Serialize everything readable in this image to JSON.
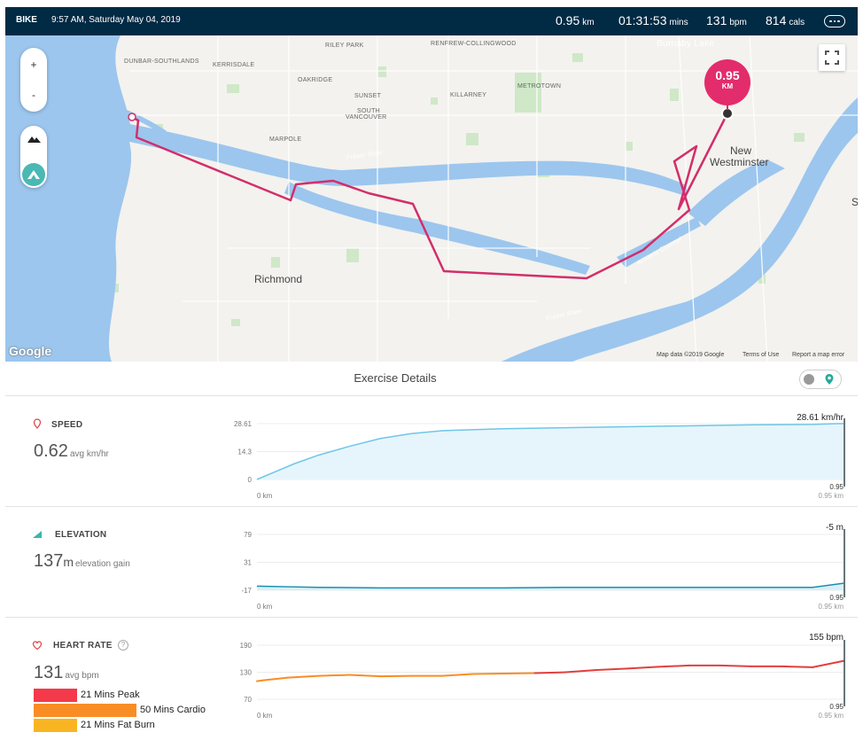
{
  "header": {
    "activity": "BIKE",
    "datetime": "9:57 AM, Saturday May 04, 2019",
    "distance_value": "0.95",
    "distance_unit": "km",
    "duration_value": "01:31:53",
    "duration_unit": "mins",
    "bpm_value": "131",
    "bpm_unit": "bpm",
    "cals_value": "814",
    "cals_unit": "cals"
  },
  "map": {
    "labels": [
      "DUNBAR-SOUTHLANDS",
      "KERRISDALE",
      "RILEY PARK",
      "OAKRIDGE",
      "RENFREW-COLLINGWOOD",
      "SUNSET",
      "SOUTH",
      "VANCOUVER",
      "KILLARNEY",
      "METROTOWN",
      "MARPOLE",
      "Fraser River",
      "Fraser River",
      "Annacis Channel",
      "Burnaby Lake"
    ],
    "cities": [
      "Richmond",
      "New",
      "Westminster",
      "S"
    ],
    "zoom_in": "+",
    "zoom_out": "-",
    "pin_value": "0.95",
    "pin_unit": "KM",
    "google": "Google",
    "footer_data": "Map data ©2019 Google",
    "footer_terms": "Terms of Use",
    "footer_report": "Report a map error"
  },
  "details": {
    "title": "Exercise Details"
  },
  "speed": {
    "label": "SPEED",
    "value": "0.62",
    "unit": "avg km/hr",
    "y_max": "28.61",
    "y_mid": "14.3",
    "y_min": "0",
    "x_start": "0 km",
    "x_end_top": "0.95",
    "x_end": "0.95 km",
    "readout": "28.61 km/hr"
  },
  "elevation": {
    "label": "ELEVATION",
    "value": "137",
    "value_unit": "m",
    "unit": "elevation gain",
    "y_max": "79",
    "y_mid": "31",
    "y_min": "-17",
    "x_start": "0 km",
    "x_end_top": "0.95",
    "x_end": "0.95 km",
    "readout": "-5 m"
  },
  "heart": {
    "label": "HEART RATE",
    "help": "?",
    "value": "131",
    "unit": "avg bpm",
    "y_max": "190",
    "y_mid": "130",
    "y_min": "70",
    "x_start": "0 km",
    "x_end_top": "0.95",
    "x_end": "0.95 km",
    "readout": "155 bpm",
    "zones": [
      {
        "label": "21 Mins Peak",
        "color": "#f4394a",
        "minutes": 21
      },
      {
        "label": "50 Mins Cardio",
        "color": "#f98d25",
        "minutes": 50
      },
      {
        "label": "21 Mins Fat Burn",
        "color": "#f9b521",
        "minutes": 21
      }
    ]
  },
  "chart_data": [
    {
      "type": "area",
      "title": "SPEED",
      "xlabel": "km",
      "ylabel": "km/hr",
      "xlim": [
        0,
        0.95
      ],
      "ylim": [
        0,
        28.61
      ],
      "x": [
        0,
        0.03,
        0.06,
        0.1,
        0.15,
        0.2,
        0.25,
        0.3,
        0.4,
        0.5,
        0.6,
        0.7,
        0.8,
        0.9,
        0.94,
        0.95
      ],
      "values": [
        0,
        4,
        8,
        12.5,
        17,
        21,
        23.5,
        25,
        26,
        26.5,
        27,
        27.5,
        28,
        28.2,
        28.61,
        28.61
      ]
    },
    {
      "type": "area",
      "title": "ELEVATION",
      "xlabel": "km",
      "ylabel": "m",
      "xlim": [
        0,
        0.95
      ],
      "ylim": [
        -17,
        79
      ],
      "x": [
        0,
        0.05,
        0.1,
        0.2,
        0.3,
        0.4,
        0.5,
        0.6,
        0.7,
        0.8,
        0.9,
        0.95
      ],
      "values": [
        -10,
        -11,
        -12,
        -13,
        -13,
        -13,
        -12,
        -12,
        -12,
        -12,
        -12,
        -5
      ]
    },
    {
      "type": "line",
      "title": "HEART RATE",
      "xlabel": "km",
      "ylabel": "bpm",
      "xlim": [
        0,
        0.95
      ],
      "ylim": [
        70,
        190
      ],
      "x": [
        0,
        0.01,
        0.05,
        0.1,
        0.15,
        0.2,
        0.25,
        0.3,
        0.35,
        0.4,
        0.45,
        0.5,
        0.55,
        0.6,
        0.65,
        0.7,
        0.75,
        0.8,
        0.85,
        0.9,
        0.95
      ],
      "values": [
        110,
        112,
        118,
        122,
        124,
        121,
        122,
        122,
        126,
        127,
        128,
        130,
        135,
        138,
        142,
        145,
        145,
        143,
        143,
        141,
        155
      ]
    }
  ],
  "colors": {
    "header_bg": "#012a44",
    "route": "#d32e6a",
    "speed": "#6ec6e8",
    "elevation": "#1a8eb0",
    "hr_low": "#f98d25",
    "hr_high": "#e0403f"
  }
}
